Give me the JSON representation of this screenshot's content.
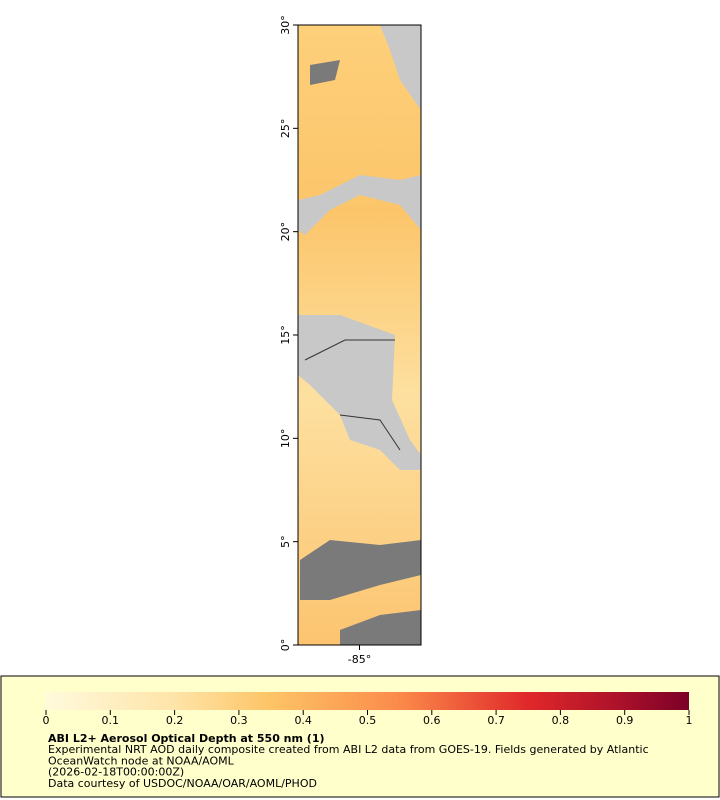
{
  "map": {
    "ylim": [
      0,
      30
    ],
    "yticks": [
      {
        "value": 0,
        "label": "0°"
      },
      {
        "value": 5,
        "label": "5°"
      },
      {
        "value": 10,
        "label": "10°"
      },
      {
        "value": 15,
        "label": "15°"
      },
      {
        "value": 20,
        "label": "20°"
      },
      {
        "value": 25,
        "label": "25°"
      },
      {
        "value": 30,
        "label": "30°"
      }
    ],
    "xlim": [
      -86,
      -84
    ],
    "xticks": [
      {
        "value": -85,
        "label": "-85°"
      }
    ]
  },
  "colorbar": {
    "lim": [
      0,
      1
    ],
    "ticks": [
      0,
      0.1,
      0.2,
      0.3,
      0.4,
      0.5,
      0.6,
      0.7,
      0.8,
      0.9,
      1
    ]
  },
  "legend": {
    "title": "ABI L2+ Aerosol Optical Depth at 550 nm (1)",
    "lines": [
      "Experimental NRT AOD daily composite created from ABI L2 data from GOES-19. Fields generated by Atlantic",
      "OceanWatch node at NOAA/AOML",
      "(2026-02-18T00:00:00Z)",
      "Data courtesy of USDOC/NOAA/OAR/AOML/PHOD"
    ]
  }
}
